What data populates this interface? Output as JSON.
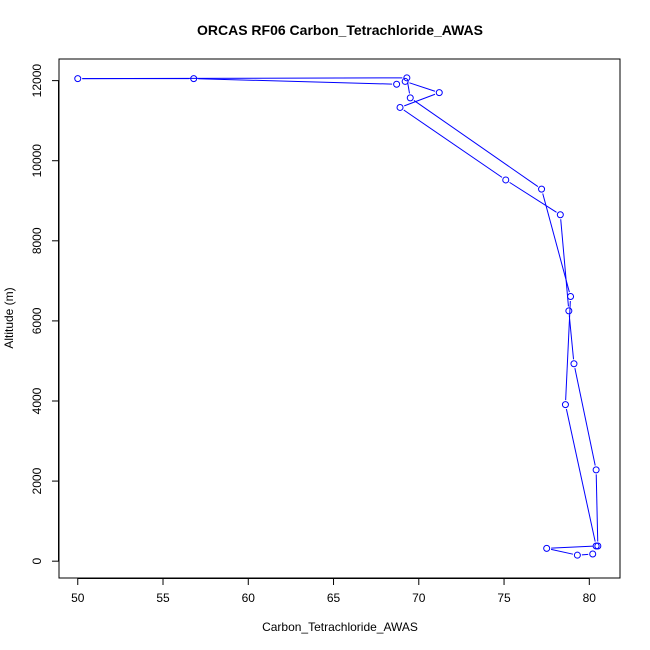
{
  "chart_data": {
    "type": "line",
    "title": "ORCAS RF06 Carbon_Tetrachloride_AWAS",
    "xlabel": "Carbon_Tetrachloride_AWAS",
    "ylabel": "Altitude (m)",
    "xlim": [
      48.9,
      81.8
    ],
    "ylim": [
      -420,
      12540
    ],
    "x_ticks": [
      50,
      55,
      60,
      65,
      70,
      75,
      80
    ],
    "y_ticks": [
      0,
      2000,
      4000,
      6000,
      8000,
      10000,
      12000
    ],
    "markers": "open-circle",
    "line_color": "#0000ff",
    "series": [
      {
        "points": [
          {
            "x": 80.2,
            "y": 180
          },
          {
            "x": 79.3,
            "y": 150
          },
          {
            "x": 77.5,
            "y": 320
          },
          {
            "x": 80.5,
            "y": 380
          },
          {
            "x": 80.4,
            "y": 2280
          },
          {
            "x": 79.1,
            "y": 4930
          },
          {
            "x": 78.8,
            "y": 6250
          },
          {
            "x": 78.3,
            "y": 8650
          },
          {
            "x": 75.1,
            "y": 9520
          },
          {
            "x": 68.9,
            "y": 11330
          },
          {
            "x": 71.2,
            "y": 11700
          },
          {
            "x": 69.2,
            "y": 11980
          },
          {
            "x": 68.7,
            "y": 11910
          },
          {
            "x": 56.8,
            "y": 12050
          },
          {
            "x": 50.0,
            "y": 12050
          },
          {
            "x": 69.3,
            "y": 12070
          },
          {
            "x": 69.5,
            "y": 11570
          },
          {
            "x": 77.2,
            "y": 9290
          },
          {
            "x": 78.9,
            "y": 6610
          },
          {
            "x": 78.6,
            "y": 3910
          },
          {
            "x": 80.4,
            "y": 380
          }
        ]
      }
    ]
  }
}
